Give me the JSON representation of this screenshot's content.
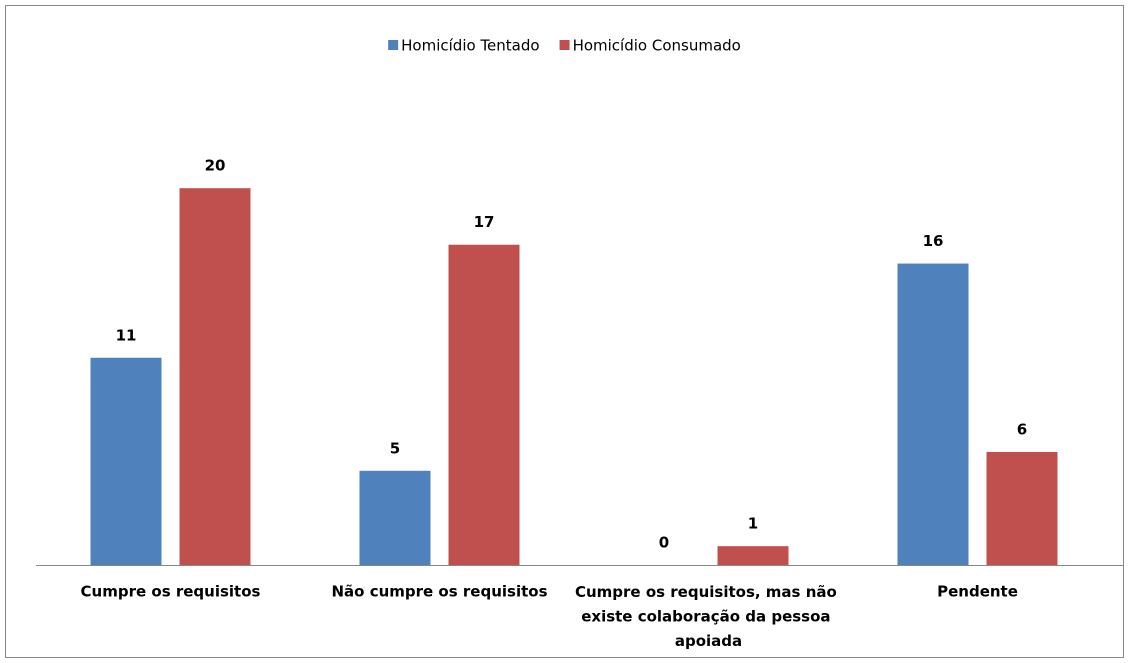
{
  "chart_data": {
    "type": "bar",
    "categories": [
      "Cumpre os requisitos",
      "Não cumpre os requisitos",
      "Cumpre os requisitos, mas não existe colaboração da pessoa apoiada",
      "Pendente"
    ],
    "series": [
      {
        "name": "Homicídio Tentado",
        "color": "#4f81bd",
        "values": [
          11,
          5,
          0,
          16
        ]
      },
      {
        "name": "Homicídio Consumado",
        "color": "#c0504d",
        "values": [
          20,
          17,
          1,
          6
        ]
      }
    ],
    "ylim": [
      0,
      25
    ],
    "legend": "top"
  }
}
